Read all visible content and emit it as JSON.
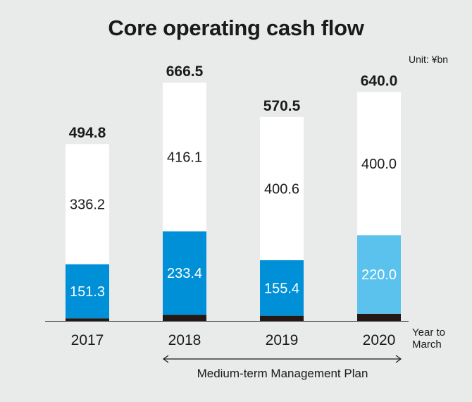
{
  "title": "Core operating cash flow",
  "unit_label": "Unit: ¥bn",
  "x_unit_label": [
    "Year to",
    "March"
  ],
  "plan_label": "Medium-term Management Plan",
  "colors": {
    "background": "#e9eaea",
    "top_segment": "#ffffff",
    "mid_segment": "#0090d8",
    "mid_segment_forecast": "#5bc2ee",
    "base_segment": "#231815",
    "axis": "#333333"
  },
  "chart_data": {
    "type": "bar",
    "stacked": true,
    "title": "Core operating cash flow",
    "unit": "Unit: ¥bn",
    "xlabel": "Year to March",
    "categories": [
      "2017",
      "2018",
      "2019",
      "2020"
    ],
    "totals": [
      "494.8",
      "666.5",
      "570.5",
      "640.0"
    ],
    "series": [
      {
        "values": [
          7.3,
          17.0,
          14.5,
          20.0
        ],
        "labels": [
          "",
          "",
          "",
          ""
        ],
        "colors": [
          "#231815",
          "#231815",
          "#231815",
          "#231815"
        ]
      },
      {
        "values": [
          151.3,
          233.4,
          155.4,
          220.0
        ],
        "labels": [
          "151.3",
          "233.4",
          "155.4",
          "220.0"
        ],
        "colors": [
          "#0090d8",
          "#0090d8",
          "#0090d8",
          "#5bc2ee"
        ]
      },
      {
        "values": [
          336.2,
          416.1,
          400.6,
          400.0
        ],
        "labels": [
          "336.2",
          "416.1",
          "400.6",
          "400.0"
        ],
        "colors": [
          "#ffffff",
          "#ffffff",
          "#ffffff",
          "#ffffff"
        ]
      }
    ],
    "annotation": {
      "text": "Medium-term Management Plan",
      "span": [
        "2018",
        "2020"
      ]
    }
  }
}
